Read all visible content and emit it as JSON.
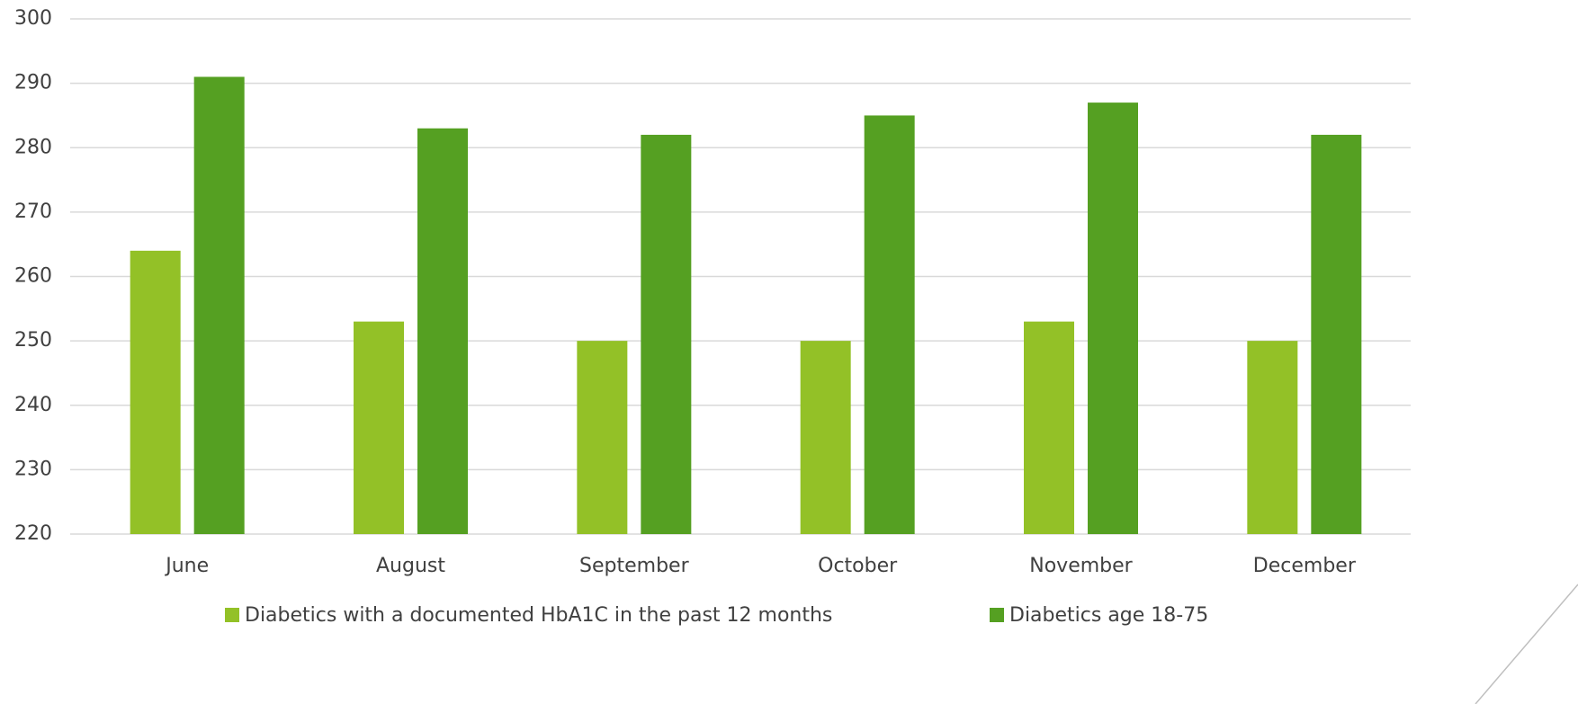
{
  "chart_data": {
    "type": "bar",
    "categories": [
      "June",
      "August",
      "September",
      "October",
      "November",
      "December"
    ],
    "series": [
      {
        "name": "Diabetics with a documented HbA1C in the past 12 months",
        "color": "#93c127",
        "values": [
          264,
          253,
          250,
          250,
          253,
          250
        ]
      },
      {
        "name": "Diabetics age 18-75",
        "color": "#55a022",
        "values": [
          291,
          283,
          282,
          285,
          287,
          282
        ]
      }
    ],
    "ylim": [
      220,
      300
    ],
    "yticks": [
      220,
      230,
      240,
      250,
      260,
      270,
      280,
      290,
      300
    ],
    "grid": true,
    "legend": "bottom"
  }
}
